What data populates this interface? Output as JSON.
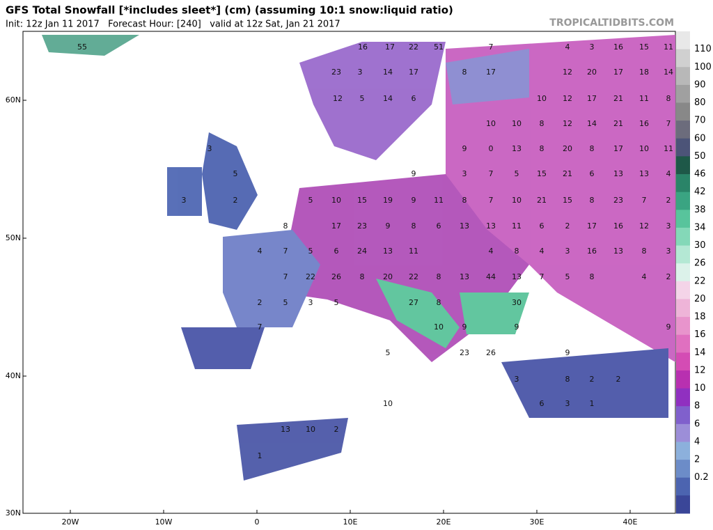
{
  "header": {
    "title": "GFS Total Snowfall [*includes sleet*] (cm) (assuming 10:1 snow:liquid ratio)",
    "subtitle": "Init: 12z Jan 11 2017   Forecast Hour: [240]   valid at 12z Sat, Jan 21 2017",
    "site": "TROPICALTIDBITS.COM"
  },
  "axes": {
    "lat_labels": [
      "60N",
      "50N",
      "40N",
      "30N"
    ],
    "lon_labels": [
      "20W",
      "10W",
      "0",
      "10E",
      "20E",
      "30E",
      "40E"
    ]
  },
  "colorbar": {
    "labels": [
      "110",
      "100",
      "90",
      "80",
      "70",
      "60",
      "50",
      "46",
      "42",
      "38",
      "34",
      "30",
      "26",
      "22",
      "20",
      "18",
      "16",
      "14",
      "12",
      "10",
      "8",
      "6",
      "4",
      "2",
      "0.2"
    ],
    "colors": [
      "#e8e8e8",
      "#d0d0d0",
      "#b8b8b8",
      "#a0a0a0",
      "#888888",
      "#6c6c7c",
      "#4c5478",
      "#1e5848",
      "#2a8468",
      "#3aa482",
      "#58c49c",
      "#84d8b8",
      "#b4e8d4",
      "#dcf2ea",
      "#f4d4e8",
      "#eeb4d8",
      "#e894cc",
      "#e070c0",
      "#d44cb4",
      "#b830b0",
      "#9030c0",
      "#8060cc",
      "#9c8ed8",
      "#8cb0dc",
      "#6c8cc8",
      "#4c64b0",
      "#3a4698"
    ]
  },
  "map_labels": [
    "55",
    "16",
    "17",
    "22",
    "51",
    "7",
    "4",
    "3",
    "16",
    "15",
    "11",
    "23",
    "3",
    "14",
    "17",
    "8",
    "17",
    "12",
    "20",
    "17",
    "18",
    "14",
    "12",
    "5",
    "14",
    "6",
    "10",
    "12",
    "17",
    "21",
    "11",
    "8",
    "10",
    "10",
    "8",
    "12",
    "14",
    "21",
    "16",
    "7",
    "3",
    "9",
    "0",
    "13",
    "8",
    "20",
    "8",
    "17",
    "10",
    "11",
    "5",
    "9",
    "3",
    "7",
    "5",
    "15",
    "21",
    "6",
    "13",
    "13",
    "4",
    "3",
    "2",
    "5",
    "10",
    "15",
    "19",
    "9",
    "11",
    "8",
    "7",
    "10",
    "21",
    "15",
    "8",
    "23",
    "7",
    "2",
    "8",
    "17",
    "23",
    "9",
    "8",
    "6",
    "13",
    "13",
    "11",
    "6",
    "2",
    "17",
    "16",
    "12",
    "3",
    "4",
    "7",
    "5",
    "6",
    "24",
    "13",
    "11",
    "4",
    "8",
    "4",
    "3",
    "16",
    "13",
    "8",
    "3",
    "7",
    "22",
    "26",
    "8",
    "20",
    "22",
    "8",
    "13",
    "44",
    "13",
    "7",
    "5",
    "8",
    "4",
    "2",
    "2",
    "5",
    "3",
    "5",
    "27",
    "8",
    "30",
    "7",
    "10",
    "9",
    "9",
    "9",
    "5",
    "23",
    "26",
    "9",
    "3",
    "8",
    "2",
    "2",
    "10",
    "6",
    "3",
    "1",
    "13",
    "10",
    "2",
    "1"
  ]
}
